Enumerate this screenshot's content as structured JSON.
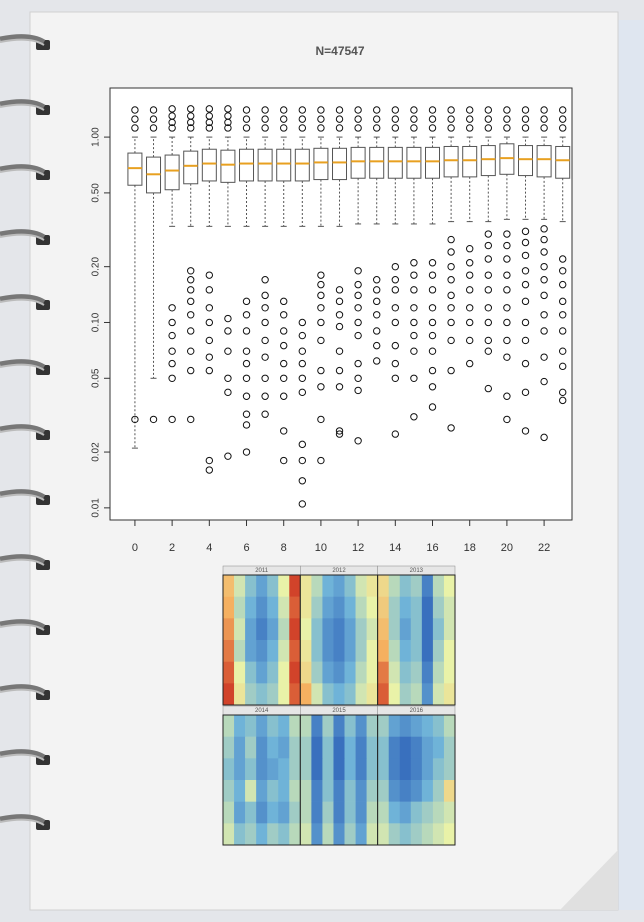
{
  "chart_data": [
    {
      "type": "boxplot",
      "title": "N=47547",
      "x": [
        0,
        1,
        2,
        3,
        4,
        5,
        6,
        7,
        8,
        9,
        10,
        11,
        12,
        13,
        14,
        15,
        16,
        17,
        18,
        19,
        20,
        21,
        22,
        23
      ],
      "q1": [
        0.55,
        0.5,
        0.52,
        0.56,
        0.58,
        0.57,
        0.58,
        0.58,
        0.58,
        0.58,
        0.59,
        0.59,
        0.6,
        0.6,
        0.6,
        0.6,
        0.6,
        0.61,
        0.61,
        0.62,
        0.63,
        0.62,
        0.61,
        0.6
      ],
      "median": [
        0.68,
        0.63,
        0.66,
        0.7,
        0.72,
        0.71,
        0.72,
        0.72,
        0.72,
        0.72,
        0.73,
        0.73,
        0.74,
        0.74,
        0.74,
        0.74,
        0.74,
        0.75,
        0.75,
        0.76,
        0.77,
        0.76,
        0.76,
        0.75
      ],
      "q3": [
        0.82,
        0.78,
        0.8,
        0.84,
        0.86,
        0.85,
        0.86,
        0.86,
        0.86,
        0.86,
        0.87,
        0.87,
        0.88,
        0.88,
        0.88,
        0.88,
        0.88,
        0.89,
        0.89,
        0.9,
        0.92,
        0.9,
        0.9,
        0.89
      ],
      "whisker_low": [
        0.021,
        0.05,
        0.33,
        0.33,
        0.33,
        0.33,
        0.33,
        0.33,
        0.33,
        0.33,
        0.33,
        0.33,
        0.34,
        0.34,
        0.34,
        0.34,
        0.34,
        0.35,
        0.35,
        0.35,
        0.36,
        0.36,
        0.36,
        0.35
      ],
      "whisker_high": [
        1.0,
        1.0,
        1.0,
        1.0,
        1.0,
        1.0,
        1.0,
        1.0,
        1.0,
        1.0,
        1.0,
        1.0,
        1.0,
        1.0,
        1.0,
        1.0,
        1.0,
        1.0,
        1.0,
        1.0,
        1.0,
        1.0,
        1.0,
        1.0
      ],
      "outliers": [
        [
          1.12,
          1.25,
          1.4,
          0.03
        ],
        [
          1.12,
          1.25,
          1.4,
          0.03
        ],
        [
          1.12,
          1.2,
          1.3,
          1.42,
          0.12,
          0.1,
          0.085,
          0.07,
          0.06,
          0.05,
          0.03
        ],
        [
          1.12,
          1.2,
          1.3,
          1.42,
          0.19,
          0.17,
          0.15,
          0.13,
          0.11,
          0.09,
          0.07,
          0.055,
          0.03
        ],
        [
          1.12,
          1.2,
          1.3,
          1.42,
          0.18,
          0.15,
          0.12,
          0.1,
          0.08,
          0.065,
          0.055,
          0.018,
          0.016
        ],
        [
          1.12,
          1.2,
          1.3,
          1.42,
          0.105,
          0.09,
          0.07,
          0.05,
          0.042,
          0.019
        ],
        [
          1.12,
          1.25,
          1.4,
          0.13,
          0.11,
          0.09,
          0.07,
          0.06,
          0.05,
          0.04,
          0.032,
          0.028,
          0.02
        ],
        [
          1.12,
          1.25,
          1.4,
          0.17,
          0.14,
          0.12,
          0.1,
          0.08,
          0.065,
          0.05,
          0.04,
          0.032
        ],
        [
          1.12,
          1.25,
          1.4,
          0.13,
          0.11,
          0.09,
          0.075,
          0.06,
          0.05,
          0.04,
          0.026,
          0.018
        ],
        [
          1.12,
          1.25,
          1.4,
          0.1,
          0.085,
          0.07,
          0.06,
          0.05,
          0.042,
          0.022,
          0.018,
          0.014,
          0.0105
        ],
        [
          1.12,
          1.25,
          1.4,
          0.18,
          0.16,
          0.14,
          0.12,
          0.1,
          0.08,
          0.055,
          0.045,
          0.03,
          0.018
        ],
        [
          1.12,
          1.25,
          1.4,
          0.15,
          0.13,
          0.11,
          0.095,
          0.07,
          0.055,
          0.045,
          0.026,
          0.025
        ],
        [
          1.12,
          1.25,
          1.4,
          0.19,
          0.16,
          0.14,
          0.12,
          0.1,
          0.085,
          0.06,
          0.05,
          0.043,
          0.023
        ],
        [
          1.12,
          1.25,
          1.4,
          0.17,
          0.15,
          0.13,
          0.11,
          0.09,
          0.075,
          0.062
        ],
        [
          1.12,
          1.25,
          1.4,
          0.2,
          0.17,
          0.15,
          0.12,
          0.1,
          0.075,
          0.06,
          0.05,
          0.025
        ],
        [
          1.12,
          1.25,
          1.4,
          0.21,
          0.18,
          0.15,
          0.12,
          0.1,
          0.085,
          0.07,
          0.05,
          0.031
        ],
        [
          1.12,
          1.25,
          1.4,
          0.21,
          0.18,
          0.15,
          0.12,
          0.1,
          0.085,
          0.07,
          0.055,
          0.045,
          0.035
        ],
        [
          1.12,
          1.25,
          1.4,
          0.28,
          0.24,
          0.2,
          0.17,
          0.14,
          0.12,
          0.1,
          0.08,
          0.055,
          0.027
        ],
        [
          1.12,
          1.25,
          1.4,
          0.25,
          0.21,
          0.18,
          0.15,
          0.12,
          0.1,
          0.08,
          0.06
        ],
        [
          1.12,
          1.25,
          1.4,
          0.3,
          0.26,
          0.22,
          0.18,
          0.15,
          0.12,
          0.1,
          0.08,
          0.07,
          0.044
        ],
        [
          1.12,
          1.25,
          1.4,
          0.3,
          0.26,
          0.22,
          0.18,
          0.15,
          0.12,
          0.1,
          0.08,
          0.065,
          0.04,
          0.03
        ],
        [
          1.12,
          1.25,
          1.4,
          0.31,
          0.27,
          0.23,
          0.19,
          0.16,
          0.13,
          0.1,
          0.08,
          0.06,
          0.042,
          0.026
        ],
        [
          1.12,
          1.25,
          1.4,
          0.32,
          0.28,
          0.24,
          0.2,
          0.17,
          0.14,
          0.11,
          0.09,
          0.065,
          0.048,
          0.024
        ],
        [
          1.12,
          1.25,
          1.4,
          0.22,
          0.19,
          0.16,
          0.13,
          0.11,
          0.09,
          0.07,
          0.058,
          0.042,
          0.038
        ]
      ],
      "box_color": "#555555",
      "median_color": "#e8a020",
      "log_y": true,
      "xlim": [
        -1.34,
        23.5
      ],
      "xticks": [
        0,
        2,
        4,
        6,
        8,
        10,
        12,
        14,
        16,
        18,
        20,
        22
      ],
      "ylim": [
        0.0086,
        1.84
      ],
      "yticks": [
        0.01,
        0.02,
        0.05,
        {
          "value": 0.1,
          "label": "0.10"
        },
        {
          "value": 0.2,
          "label": "0.20"
        },
        {
          "value": 0.5,
          "label": "0.50"
        },
        {
          "value": 1,
          "label": "1.00"
        }
      ]
    },
    {
      "type": "heatmap",
      "colors": [
        "#2c5fb8",
        "#6fb3d8",
        "#e9f2a8",
        "#f5b060",
        "#c8281c"
      ],
      "panels": [
        {
          "title": "2011",
          "values": [
            [
              0.7,
              0.45,
              0.3,
              0.2,
              0.3,
              0.5,
              0.95
            ],
            [
              0.75,
              0.4,
              0.25,
              0.15,
              0.25,
              0.45,
              0.9
            ],
            [
              0.8,
              0.45,
              0.2,
              0.1,
              0.2,
              0.4,
              0.95
            ],
            [
              0.85,
              0.4,
              0.2,
              0.15,
              0.25,
              0.45,
              0.9
            ],
            [
              0.9,
              0.5,
              0.3,
              0.2,
              0.3,
              0.5,
              0.95
            ],
            [
              0.95,
              0.55,
              0.35,
              0.3,
              0.35,
              0.5,
              0.9
            ]
          ]
        },
        {
          "title": "2012",
          "values": [
            [
              0.55,
              0.4,
              0.25,
              0.2,
              0.3,
              0.45,
              0.55
            ],
            [
              0.55,
              0.35,
              0.2,
              0.15,
              0.25,
              0.4,
              0.5
            ],
            [
              0.5,
              0.3,
              0.15,
              0.1,
              0.2,
              0.35,
              0.45
            ],
            [
              0.55,
              0.3,
              0.15,
              0.1,
              0.2,
              0.35,
              0.5
            ],
            [
              0.6,
              0.35,
              0.2,
              0.15,
              0.25,
              0.4,
              0.5
            ],
            [
              0.75,
              0.45,
              0.3,
              0.25,
              0.3,
              0.45,
              0.55
            ]
          ]
        },
        {
          "title": "2013",
          "values": [
            [
              0.6,
              0.4,
              0.3,
              0.35,
              0.1,
              0.4,
              0.5
            ],
            [
              0.65,
              0.35,
              0.25,
              0.3,
              0.05,
              0.35,
              0.45
            ],
            [
              0.7,
              0.35,
              0.2,
              0.3,
              0.05,
              0.3,
              0.45
            ],
            [
              0.75,
              0.4,
              0.25,
              0.3,
              0.05,
              0.35,
              0.5
            ],
            [
              0.85,
              0.45,
              0.3,
              0.35,
              0.1,
              0.4,
              0.5
            ],
            [
              0.9,
              0.5,
              0.35,
              0.4,
              0.15,
              0.45,
              0.55
            ]
          ]
        },
        {
          "title": "2014",
          "values": [
            [
              0.4,
              0.25,
              0.3,
              0.2,
              0.3,
              0.25,
              0.4
            ],
            [
              0.35,
              0.2,
              0.35,
              0.15,
              0.25,
              0.2,
              0.35
            ],
            [
              0.3,
              0.2,
              0.3,
              0.15,
              0.2,
              0.25,
              0.35
            ],
            [
              0.35,
              0.25,
              0.45,
              0.2,
              0.3,
              0.25,
              0.4
            ],
            [
              0.4,
              0.2,
              0.3,
              0.15,
              0.25,
              0.2,
              0.35
            ],
            [
              0.45,
              0.3,
              0.35,
              0.25,
              0.35,
              0.3,
              0.4
            ]
          ]
        },
        {
          "title": "2015",
          "values": [
            [
              0.4,
              0.1,
              0.35,
              0.1,
              0.3,
              0.15,
              0.35
            ],
            [
              0.35,
              0.05,
              0.3,
              0.05,
              0.25,
              0.1,
              0.3
            ],
            [
              0.35,
              0.05,
              0.3,
              0.05,
              0.25,
              0.1,
              0.3
            ],
            [
              0.4,
              0.1,
              0.3,
              0.1,
              0.3,
              0.15,
              0.35
            ],
            [
              0.4,
              0.1,
              0.35,
              0.1,
              0.3,
              0.15,
              0.4
            ],
            [
              0.45,
              0.15,
              0.4,
              0.15,
              0.35,
              0.2,
              0.45
            ]
          ]
        },
        {
          "title": "2016",
          "values": [
            [
              0.35,
              0.2,
              0.15,
              0.2,
              0.25,
              0.3,
              0.4
            ],
            [
              0.3,
              0.1,
              0.05,
              0.1,
              0.2,
              0.25,
              0.35
            ],
            [
              0.3,
              0.1,
              0.05,
              0.1,
              0.2,
              0.3,
              0.35
            ],
            [
              0.35,
              0.15,
              0.1,
              0.15,
              0.25,
              0.35,
              0.6
            ],
            [
              0.4,
              0.25,
              0.2,
              0.3,
              0.35,
              0.4,
              0.45
            ],
            [
              0.45,
              0.35,
              0.3,
              0.35,
              0.4,
              0.45,
              0.5
            ]
          ]
        }
      ]
    }
  ]
}
